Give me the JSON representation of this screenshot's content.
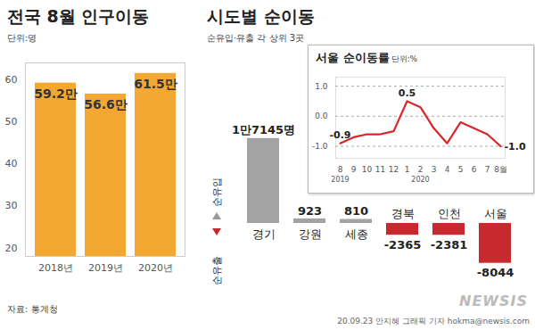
{
  "chart_data": [
    {
      "type": "bar",
      "title": "전국 8월 인구이동",
      "unit": "단위:명",
      "categories": [
        "2018년",
        "2019년",
        "2020년"
      ],
      "values": [
        59.2,
        56.6,
        61.5
      ],
      "value_labels": [
        "59.2만",
        "56.6만",
        "61.5만"
      ],
      "color": "#f5a733",
      "ylim": [
        18,
        64
      ],
      "yticks": [
        20,
        30,
        40,
        50,
        60
      ],
      "grid": false,
      "data_labels": true,
      "source": "자료: 통계청"
    },
    {
      "type": "bar",
      "title": "시도별 순이동",
      "subtitle": "순유입·유출 각 상위 3곳",
      "categories": [
        "경기",
        "강원",
        "세종",
        "경북",
        "인천",
        "서울"
      ],
      "values": [
        17145,
        923,
        810,
        -2365,
        -2381,
        -8044
      ],
      "value_labels": [
        "1만7145명",
        "923",
        "810",
        "-2365",
        "-2381",
        "-8044"
      ],
      "colors": [
        "#a3a3a3",
        "#a3a3a3",
        "#a3a3a3",
        "#c62a2f",
        "#c62a2f",
        "#c62a2f"
      ],
      "ylim": [
        -9000,
        18000
      ],
      "tick_labels": "x",
      "data_labels": true,
      "annotations": [
        "순유입",
        "순유출"
      ],
      "credit": "20.09.23 안지혜 그래픽 기자 hokma@newsis.com",
      "watermark": "NEWSIS"
    },
    {
      "type": "line",
      "title": "서울 순이동률",
      "unit": "단위:%",
      "categories": [
        "8",
        "9",
        "10",
        "11",
        "12",
        "1",
        "2",
        "3",
        "4",
        "5",
        "6",
        "7",
        "8월"
      ],
      "year_labels": [
        {
          "label": "2019",
          "category": "8"
        },
        {
          "label": "2020",
          "category": "2"
        }
      ],
      "values": [
        -0.9,
        -0.7,
        -0.6,
        -0.6,
        -0.5,
        0.5,
        0.3,
        -0.4,
        -0.9,
        -0.2,
        -0.4,
        -0.6,
        -1.0
      ],
      "value_labels": [
        "-0.9",
        null,
        null,
        null,
        null,
        "0.5",
        null,
        null,
        null,
        null,
        null,
        null,
        "-1.0"
      ],
      "color": "#d9262b",
      "ylim": [
        -1.4,
        1.3
      ],
      "yticks": [
        {
          "value": 1,
          "label": "1.0"
        },
        {
          "value": 0,
          "label": "0.0"
        },
        {
          "value": -1,
          "label": "-1.0"
        }
      ],
      "grid": true,
      "data_labels": true
    }
  ]
}
